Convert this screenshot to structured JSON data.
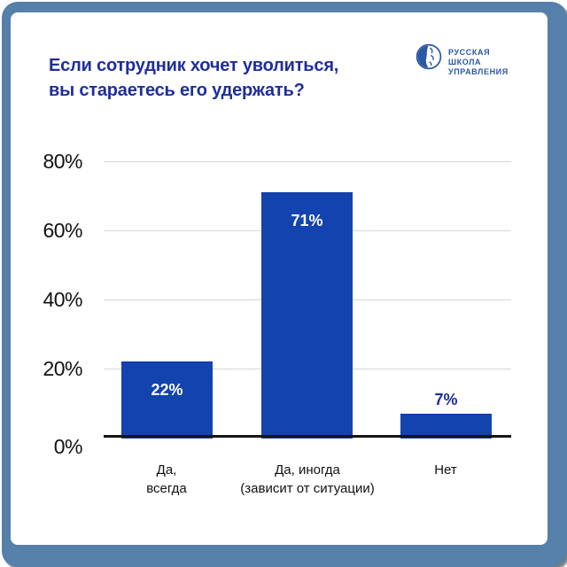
{
  "title": {
    "line1": "Если сотрудник хочет уволиться,",
    "line2": "вы стараетесь его удержать?"
  },
  "logo": {
    "lines": [
      "РУССКАЯ",
      "ШКОЛА",
      "УПРАВЛЕНИЯ"
    ]
  },
  "colors": {
    "frame": "#5480AA",
    "bar": "#1243AF",
    "title": "#1F2E9B",
    "logo": "#2B57A5",
    "grid": "#D6D6D6",
    "axis": "#151515"
  },
  "chart_data": {
    "type": "bar",
    "title": "Если сотрудник хочет уволиться, вы стараетесь его удержать?",
    "categories": [
      "Да,\nвсегда",
      "Да, иногда\n(зависит от ситуации)",
      "Нет"
    ],
    "values": [
      22,
      71,
      7
    ],
    "value_labels": [
      "22%",
      "71%",
      "7%"
    ],
    "y_tick_labels": [
      "0%",
      "20%",
      "40%",
      "60%",
      "80%"
    ],
    "y_tick_values": [
      0,
      20,
      40,
      60,
      80
    ],
    "ylim": [
      0,
      80
    ],
    "grid": true,
    "legend": false,
    "bar_color": "#1243AF",
    "xlabel": "",
    "ylabel": ""
  }
}
